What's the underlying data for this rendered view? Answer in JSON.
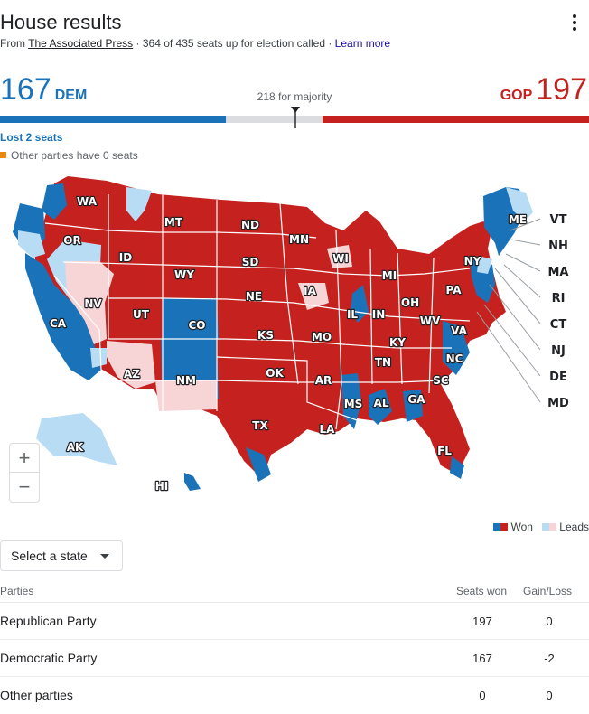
{
  "header": {
    "title": "House results",
    "source_prefix": "From",
    "source_name": "The Associated Press",
    "seats_called": "· 364 of 435 seats up for election called ·",
    "learn_more": "Learn more"
  },
  "tally": {
    "dem_count": "167",
    "dem_label": "DEM",
    "gop_count": "197",
    "gop_label": "GOP",
    "majority": "218 for majority",
    "dem_seats": 167,
    "gop_seats": 197,
    "total_seats": 435,
    "majority_seats": 218
  },
  "notes": {
    "lost_seats": "Lost 2 seats",
    "other_parties": "Other parties have 0 seats"
  },
  "colors": {
    "dem_won": "#1a73b8",
    "dem_leads": "#b9dcf5",
    "gop_won": "#c5221f",
    "gop_leads": "#f7d4d6",
    "other_note": "#e8890b"
  },
  "map": {
    "states_inline": [
      "WA",
      "OR",
      "CA",
      "NV",
      "ID",
      "MT",
      "WY",
      "UT",
      "AZ",
      "CO",
      "NM",
      "ND",
      "SD",
      "NE",
      "KS",
      "OK",
      "TX",
      "MN",
      "IA",
      "MO",
      "AR",
      "LA",
      "WI",
      "IL",
      "MS",
      "MI",
      "IN",
      "KY",
      "TN",
      "AL",
      "OH",
      "WV",
      "GA",
      "FL",
      "SC",
      "NC",
      "VA",
      "PA",
      "NY",
      "ME",
      "AK",
      "HI"
    ],
    "states_callout": [
      "VT",
      "NH",
      "MA",
      "RI",
      "CT",
      "NJ",
      "DE",
      "MD"
    ],
    "zoom_in": "+",
    "zoom_out": "−"
  },
  "legend": {
    "won": "Won",
    "leads": "Leads"
  },
  "filter": {
    "select_state": "Select a state"
  },
  "table": {
    "headers": {
      "party": "Parties",
      "seats": "Seats won",
      "gain": "Gain/Loss"
    },
    "rows": [
      {
        "party": "Republican Party",
        "seats": "197",
        "gain": "0"
      },
      {
        "party": "Democratic Party",
        "seats": "167",
        "gain": "-2"
      },
      {
        "party": "Other parties",
        "seats": "0",
        "gain": "0"
      }
    ]
  }
}
